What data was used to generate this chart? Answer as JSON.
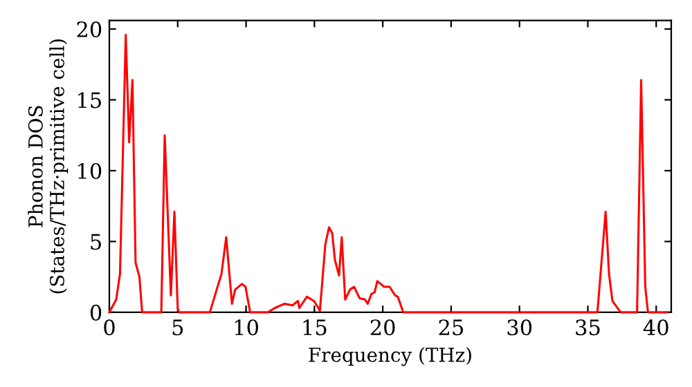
{
  "chart_data": {
    "type": "line",
    "xlabel": "Frequency (THz)",
    "ylabel": "Phonon DOS\n(States/THz·primitive cell)",
    "xlim": [
      0,
      41.1
    ],
    "ylim": [
      0,
      20.6
    ],
    "xticks": [
      0,
      5,
      10,
      15,
      20,
      25,
      30,
      35,
      40
    ],
    "yticks": [
      0,
      5,
      10,
      15,
      20
    ],
    "grid": false,
    "legend": false,
    "marker": "none",
    "line_style": "solid",
    "series": [
      {
        "color": "#ff0000",
        "x": [
          0,
          0.5,
          0.78,
          1.2,
          1.45,
          1.69,
          1.92,
          2.2,
          2.4,
          3.8,
          4.05,
          4.5,
          4.76,
          5.0,
          5.1,
          7.35,
          8.2,
          8.55,
          8.97,
          9.2,
          9.7,
          9.96,
          10.3,
          11.6,
          12.1,
          12.8,
          13.4,
          13.8,
          13.9,
          14.45,
          14.96,
          15.3,
          15.4,
          15.8,
          16.07,
          16.3,
          16.5,
          16.8,
          17.0,
          17.25,
          17.6,
          17.9,
          18.3,
          18.7,
          18.9,
          19.17,
          19.4,
          19.6,
          20.1,
          20.5,
          20.9,
          21.1,
          21.5,
          35.7,
          36.3,
          36.55,
          36.8,
          37.4,
          38.6,
          38.9,
          39.2,
          39.4,
          40.8
        ],
        "values": [
          0,
          0.9,
          2.7,
          19.6,
          12.0,
          16.4,
          3.5,
          2.5,
          0,
          0,
          12.5,
          1.2,
          7.1,
          0.3,
          0,
          0,
          2.7,
          5.3,
          0.6,
          1.6,
          2.0,
          1.8,
          0,
          0,
          0.3,
          0.6,
          0.5,
          0.8,
          0.3,
          1.1,
          0.8,
          0.3,
          0.1,
          4.8,
          6.0,
          5.6,
          3.7,
          2.6,
          5.3,
          0.9,
          1.6,
          1.8,
          1.0,
          0.9,
          0.6,
          1.3,
          1.4,
          2.2,
          1.8,
          1.8,
          1.2,
          1.1,
          0,
          0,
          7.1,
          2.7,
          0.8,
          0,
          0,
          16.4,
          1.8,
          0,
          0
        ]
      }
    ]
  }
}
